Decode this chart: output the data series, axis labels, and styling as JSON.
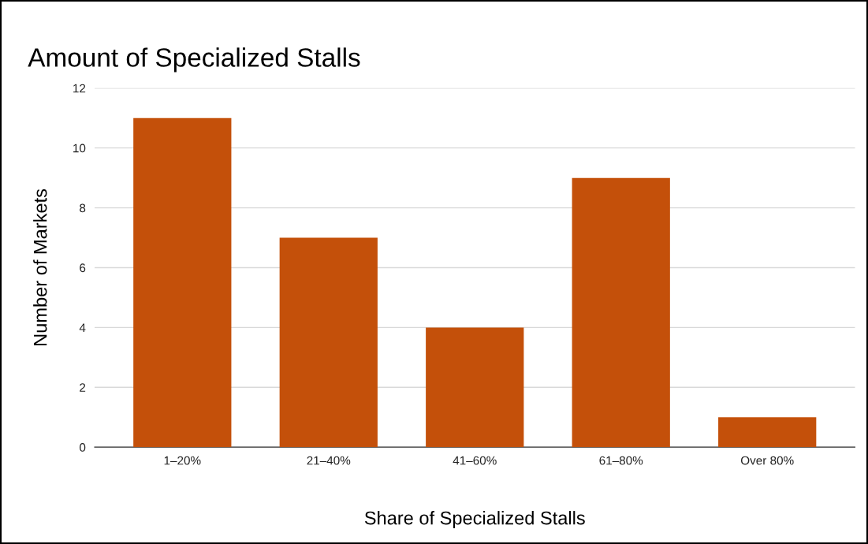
{
  "chart_data": {
    "type": "bar",
    "title": "Amount of Specialized Stalls",
    "xlabel": "Share of Specialized Stalls",
    "ylabel": "Number of Markets",
    "categories": [
      "1–20%",
      "21–40%",
      "41–60%",
      "61–80%",
      "Over 80%"
    ],
    "values": [
      11,
      7,
      4,
      9,
      1
    ],
    "color": "#c4500a",
    "ylim": [
      0,
      12
    ],
    "yticks": [
      0,
      2,
      4,
      6,
      8,
      10,
      12
    ],
    "grid": "y",
    "legend": false
  }
}
